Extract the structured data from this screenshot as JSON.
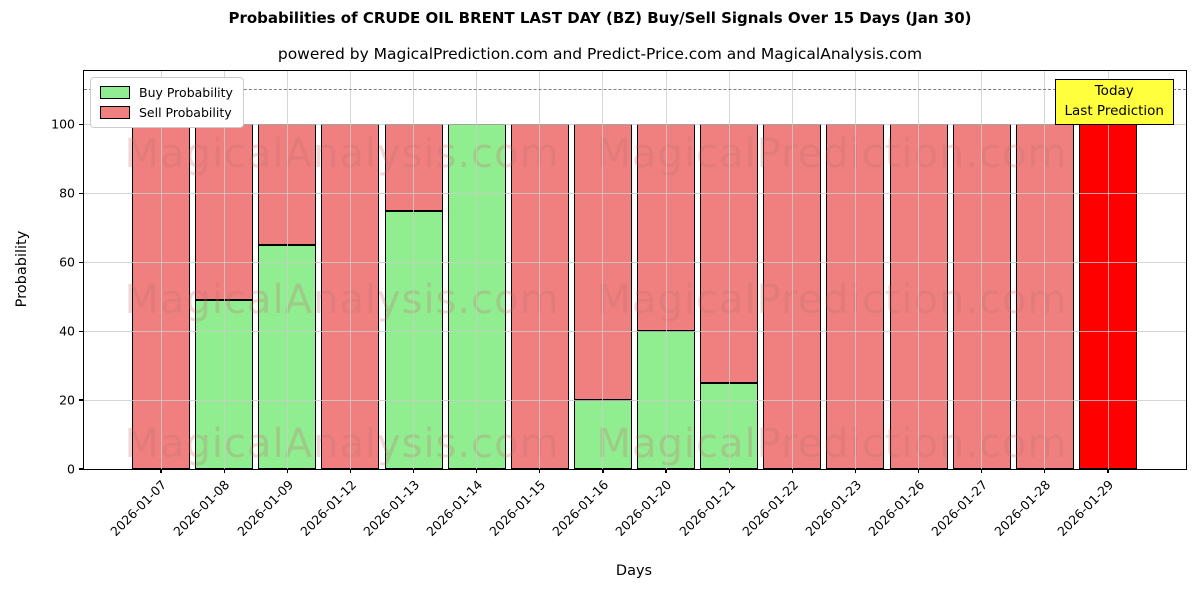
{
  "title": "Probabilities of CRUDE OIL BRENT LAST DAY (BZ) Buy/Sell Signals Over 15 Days (Jan 30)",
  "subtitle": "powered by MagicalPrediction.com and Predict-Price.com and MagicalAnalysis.com",
  "legend": {
    "buy_label": "Buy Probability",
    "sell_label": "Sell Probability"
  },
  "annotation": {
    "line1": "Today",
    "line2": "Last Prediction"
  },
  "axes": {
    "ylabel": "Probability",
    "xlabel": "Days",
    "yticks": [
      0,
      20,
      40,
      60,
      80,
      100
    ],
    "ylim": [
      0,
      115.5
    ],
    "dashed_line_y": 110,
    "grid": true
  },
  "watermarks": {
    "left_text": "MagicalAnalysis.com",
    "right_text": "MagicalPrediction.com"
  },
  "colors": {
    "buy": "#90EE90",
    "sell": "#F08080",
    "today_bar": "#FF0000",
    "bar_edge": "#000000",
    "grid": "rgba(204,204,204,0.8)",
    "dashed": "#7f7f7f",
    "annotation_bg": "#FFFF3D",
    "watermark": "rgba(195,110,110,0.27)"
  },
  "chart_data": {
    "type": "bar",
    "stacked": true,
    "title": "Probabilities of CRUDE OIL BRENT LAST DAY (BZ) Buy/Sell Signals Over 15 Days (Jan 30)",
    "xlabel": "Days",
    "ylabel": "Probability",
    "ylim": [
      0,
      115.5
    ],
    "legend_position": "upper left",
    "grid": true,
    "categories": [
      "2026-01-07",
      "2026-01-08",
      "2026-01-09",
      "2026-01-12",
      "2026-01-13",
      "2026-01-14",
      "2026-01-15",
      "2026-01-16",
      "2026-01-20",
      "2026-01-21",
      "2026-01-22",
      "2026-01-23",
      "2026-01-26",
      "2026-01-27",
      "2026-01-28",
      "2026-01-29"
    ],
    "series": [
      {
        "name": "Buy Probability",
        "color": "#90EE90",
        "values": [
          0,
          49,
          65,
          0,
          75,
          100,
          0,
          20,
          40,
          25,
          0,
          0,
          0,
          0,
          0,
          0
        ]
      },
      {
        "name": "Sell Probability",
        "color": "#F08080",
        "values": [
          100,
          51,
          35,
          100,
          25,
          0,
          100,
          80,
          60,
          75,
          100,
          100,
          100,
          100,
          100,
          100
        ]
      }
    ],
    "last_bar_highlight": {
      "category": "2026-01-29",
      "color": "#FF0000",
      "note": "Today / Last Prediction"
    }
  }
}
